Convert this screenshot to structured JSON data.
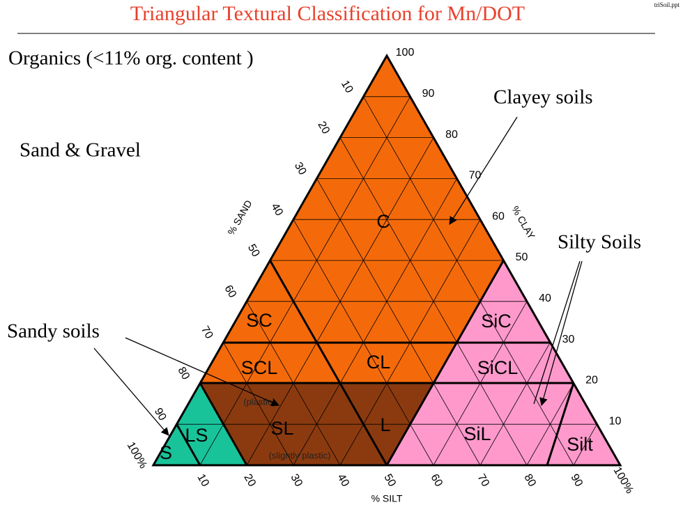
{
  "header": {
    "title": "Triangular Textural Classification for Mn/DOT",
    "file": "triSoil.ppt"
  },
  "annotations": {
    "organics": "Organics (<11% org. content )",
    "sand_gravel": "Sand & Gravel",
    "clayey": "Clayey soils",
    "silty": "Silty Soils",
    "sandy": "Sandy soils"
  },
  "triangle": {
    "axis_labels": {
      "sand": "% SAND",
      "clay": "% CLAY",
      "silt": "% SILT"
    },
    "sand_ticks": [
      10,
      20,
      30,
      40,
      50,
      60,
      70,
      80,
      90,
      {
        "value": 100,
        "label": "100%"
      }
    ],
    "clay_ticks": [
      10,
      20,
      30,
      40,
      50,
      60,
      70,
      80,
      90,
      100
    ],
    "silt_ticks": [
      10,
      20,
      30,
      40,
      50,
      60,
      70,
      80,
      90,
      {
        "value": 100,
        "label": "100%"
      }
    ],
    "regions": {
      "C": "C",
      "SC": "SC",
      "SCL": "SCL",
      "CL": "CL",
      "SiC": "SiC",
      "SiCL": "SiCL",
      "SL": "SL",
      "L": "L",
      "SiL": "SiL",
      "Silt": "Silt",
      "LS": "LS",
      "S": "S"
    },
    "notes": {
      "plastic": "(plastic)",
      "slightly_plastic": "(slightly plastic)"
    }
  }
}
